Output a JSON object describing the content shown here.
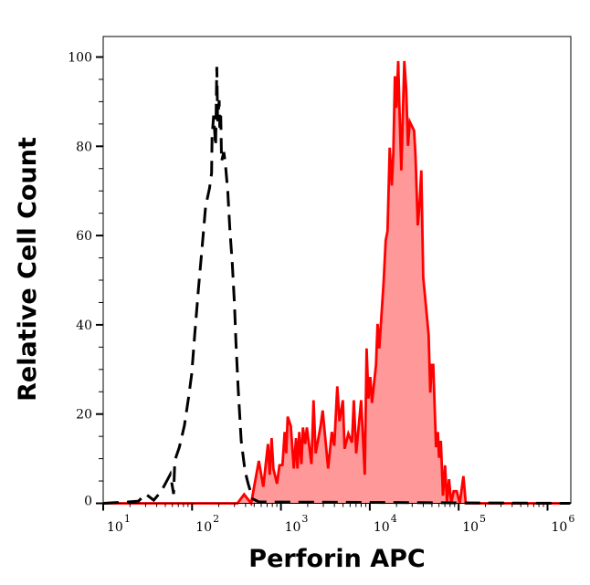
{
  "chart_data": {
    "type": "area",
    "title": "",
    "xlabel": "Perforin APC",
    "ylabel": "Relative Cell Count",
    "x_scale": "log",
    "xlim": [
      10,
      1800000
    ],
    "ylim": [
      0,
      102
    ],
    "grid": false,
    "legend": "none",
    "x_ticks": [
      {
        "base": "10",
        "exp": "1",
        "value": 10
      },
      {
        "base": "10",
        "exp": "2",
        "value": 100
      },
      {
        "base": "10",
        "exp": "3",
        "value": 1000
      },
      {
        "base": "10",
        "exp": "4",
        "value": 10000
      },
      {
        "base": "10",
        "exp": "5",
        "value": 100000
      },
      {
        "base": "10",
        "exp": "6",
        "value": 1000000
      }
    ],
    "y_ticks": [
      "0",
      "20",
      "40",
      "60",
      "80",
      "100"
    ],
    "series": [
      {
        "style": "dashed-line",
        "color": "#000000",
        "points": [
          [
            10,
            0
          ],
          [
            19,
            0.3
          ],
          [
            25,
            0.5
          ],
          [
            30,
            2.1
          ],
          [
            37,
            0.7
          ],
          [
            45,
            2.7
          ],
          [
            57,
            6.5
          ],
          [
            62,
            2.1
          ],
          [
            64,
            9.6
          ],
          [
            72,
            12.6
          ],
          [
            82,
            17.4
          ],
          [
            92,
            24.2
          ],
          [
            99,
            29
          ],
          [
            107,
            37.8
          ],
          [
            118,
            48.1
          ],
          [
            131,
            58.3
          ],
          [
            142,
            66.5
          ],
          [
            157,
            70.6
          ],
          [
            166,
            74
          ],
          [
            168,
            82.2
          ],
          [
            175,
            86.9
          ],
          [
            184,
            80
          ],
          [
            190,
            97.8
          ],
          [
            194,
            85.6
          ],
          [
            202,
            90.3
          ],
          [
            205,
            84.2
          ],
          [
            210,
            86.9
          ],
          [
            215,
            76.7
          ],
          [
            228,
            78.7
          ],
          [
            237,
            76
          ],
          [
            252,
            69.9
          ],
          [
            266,
            61.7
          ],
          [
            284,
            53.5
          ],
          [
            300,
            44.7
          ],
          [
            312,
            35.8
          ],
          [
            330,
            25.6
          ],
          [
            357,
            14
          ],
          [
            395,
            7.2
          ],
          [
            428,
            4.4
          ],
          [
            481,
            1
          ],
          [
            564,
            0.3
          ],
          [
            1800000,
            0
          ]
        ]
      },
      {
        "style": "filled",
        "color": "#ff0000",
        "fill": "#ff9999",
        "points": [
          [
            10,
            0
          ],
          [
            324,
            0
          ],
          [
            385,
            2
          ],
          [
            462,
            0
          ],
          [
            564,
            9.5
          ],
          [
            634,
            3.7
          ],
          [
            714,
            13.3
          ],
          [
            748,
            6.4
          ],
          [
            785,
            14.6
          ],
          [
            822,
            7.8
          ],
          [
            904,
            4.4
          ],
          [
            963,
            8.5
          ],
          [
            1042,
            8.6
          ],
          [
            1102,
            16
          ],
          [
            1146,
            11.2
          ],
          [
            1191,
            19.4
          ],
          [
            1290,
            17.3
          ],
          [
            1396,
            7.8
          ],
          [
            1476,
            14.6
          ],
          [
            1535,
            7.8
          ],
          [
            1610,
            16
          ],
          [
            1700,
            8.8
          ],
          [
            1770,
            17
          ],
          [
            1870,
            13.3
          ],
          [
            1960,
            17
          ],
          [
            2205,
            8.8
          ],
          [
            2330,
            23.1
          ],
          [
            2460,
            11.2
          ],
          [
            2790,
            17.3
          ],
          [
            2950,
            20.8
          ],
          [
            3400,
            7.8
          ],
          [
            3740,
            16
          ],
          [
            3980,
            12.9
          ],
          [
            4310,
            26.2
          ],
          [
            4560,
            18.4
          ],
          [
            4970,
            23.1
          ],
          [
            5210,
            12.2
          ],
          [
            5730,
            15.6
          ],
          [
            6300,
            13.6
          ],
          [
            6610,
            23.1
          ],
          [
            7030,
            11.2
          ],
          [
            7980,
            23.1
          ],
          [
            8770,
            6.4
          ],
          [
            9200,
            34.7
          ],
          [
            9640,
            23.5
          ],
          [
            10110,
            28.3
          ],
          [
            10590,
            22.5
          ],
          [
            11750,
            31
          ],
          [
            12220,
            40.2
          ],
          [
            12800,
            34.7
          ],
          [
            14290,
            49.4
          ],
          [
            15110,
            58.9
          ],
          [
            15840,
            61
          ],
          [
            16750,
            79.7
          ],
          [
            17700,
            71.2
          ],
          [
            18410,
            78.7
          ],
          [
            19150,
            95.7
          ],
          [
            19910,
            88.6
          ],
          [
            20890,
            99.1
          ],
          [
            21560,
            88.2
          ],
          [
            22600,
            74.6
          ],
          [
            24470,
            99.1
          ],
          [
            25660,
            93
          ],
          [
            26910,
            80.1
          ],
          [
            28210,
            85.5
          ],
          [
            31480,
            83.5
          ],
          [
            32740,
            77.7
          ],
          [
            34600,
            62.3
          ],
          [
            36280,
            67.1
          ],
          [
            38020,
            74.6
          ],
          [
            39900,
            50.7
          ],
          [
            45920,
            37.8
          ],
          [
            47850,
            24.8
          ],
          [
            49770,
            31
          ],
          [
            51760,
            31
          ],
          [
            55590,
            12.6
          ],
          [
            58250,
            16
          ],
          [
            60130,
            10.2
          ],
          [
            62990,
            14
          ],
          [
            66540,
            1.7
          ],
          [
            70310,
            8.5
          ],
          [
            73790,
            0.3
          ],
          [
            77960,
            5.4
          ],
          [
            82370,
            0
          ],
          [
            87700,
            2.7
          ],
          [
            95060,
            2.7
          ],
          [
            102800,
            0
          ],
          [
            113000,
            6.1
          ],
          [
            120300,
            0
          ],
          [
            1800000,
            0
          ]
        ]
      }
    ]
  }
}
